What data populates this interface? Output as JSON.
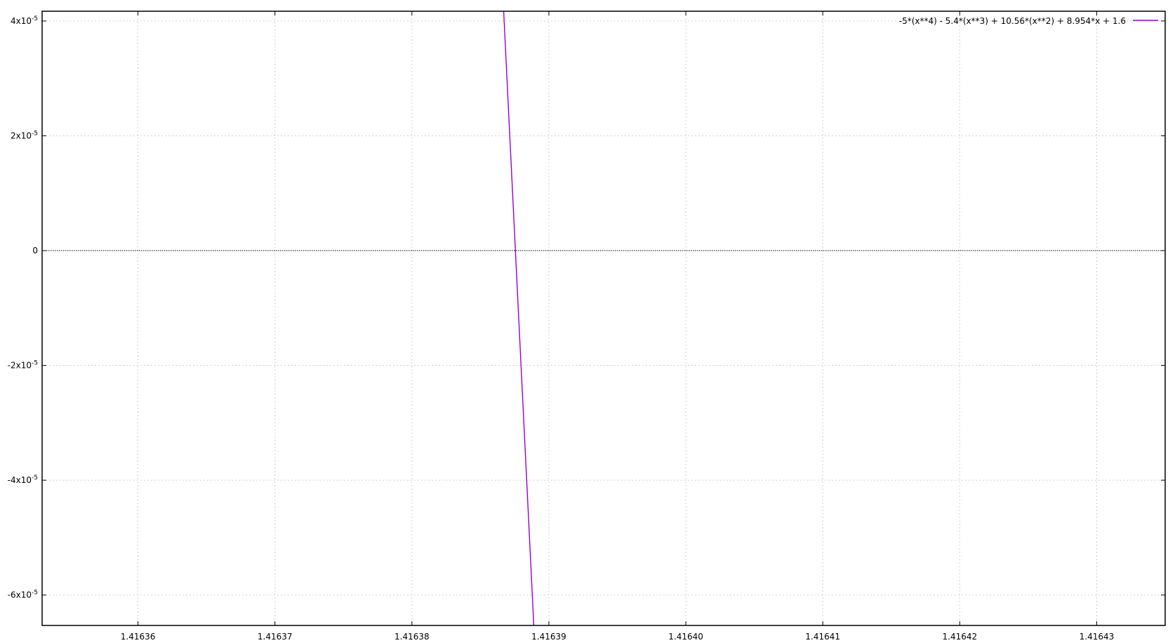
{
  "chart_data": {
    "type": "line",
    "title": "",
    "xlabel": "",
    "ylabel": "",
    "xlim": [
      1.416353,
      1.416435
    ],
    "ylim": [
      -6.53e-05,
      4.17e-05
    ],
    "x_ticks": [
      {
        "value": 1.41636,
        "label": "1.41636"
      },
      {
        "value": 1.41637,
        "label": "1.41637"
      },
      {
        "value": 1.41638,
        "label": "1.41638"
      },
      {
        "value": 1.41639,
        "label": "1.41639"
      },
      {
        "value": 1.4164,
        "label": "1.41640"
      },
      {
        "value": 1.41641,
        "label": "1.41641"
      },
      {
        "value": 1.41642,
        "label": "1.41642"
      },
      {
        "value": 1.41643,
        "label": "1.41643"
      }
    ],
    "y_ticks": [
      {
        "value": 4e-05,
        "mantissa": "4x10",
        "exponent": "-5"
      },
      {
        "value": 2e-05,
        "mantissa": "2x10",
        "exponent": "-5"
      },
      {
        "value": 0,
        "mantissa": "0",
        "exponent": ""
      },
      {
        "value": -2e-05,
        "mantissa": "-2x10",
        "exponent": "-5"
      },
      {
        "value": -4e-05,
        "mantissa": "-4x10",
        "exponent": "-5"
      },
      {
        "value": -6e-05,
        "mantissa": "-6x10",
        "exponent": "-5"
      }
    ],
    "grid": true,
    "zero_line": true,
    "legend_position": "top-right",
    "series": [
      {
        "name": "-5*(x**4) - 5.4*(x**3) + 10.56*(x**2) + 8.954*x + 1.6",
        "color": "#9400d3",
        "x": [
          1.4163867,
          1.4163889
        ],
        "y": [
          4.17e-05,
          -6.53e-05
        ]
      }
    ]
  }
}
